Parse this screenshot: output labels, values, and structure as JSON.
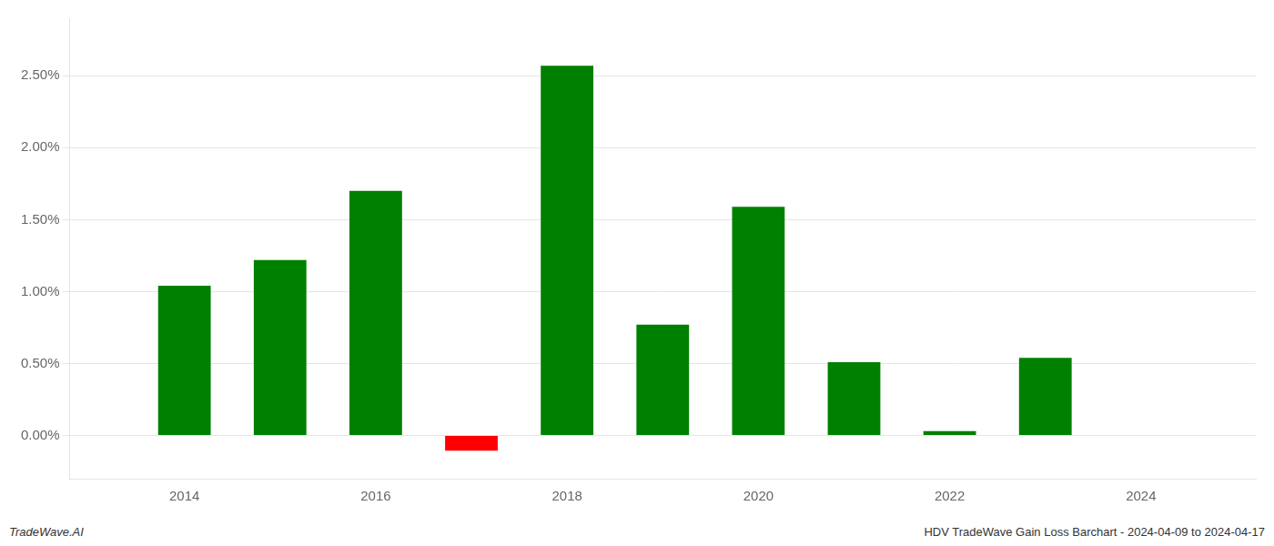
{
  "chart_data": {
    "type": "bar",
    "x": [
      2014,
      2015,
      2016,
      2017,
      2018,
      2019,
      2020,
      2021,
      2022,
      2023
    ],
    "values": [
      0.0104,
      0.0122,
      0.017,
      -0.00105,
      0.0257,
      0.0077,
      0.0159,
      0.0051,
      0.0003,
      0.0054
    ],
    "colors": [
      "#008000",
      "#008000",
      "#008000",
      "#ff0000",
      "#008000",
      "#008000",
      "#008000",
      "#008000",
      "#008000",
      "#008000"
    ],
    "xlim": [
      2012.8,
      2025.2
    ],
    "xticks": [
      2014,
      2016,
      2018,
      2020,
      2022,
      2024
    ],
    "ylim": [
      -0.003,
      0.029
    ],
    "yticks": [
      {
        "value": 0,
        "label": "0.00%"
      },
      {
        "value": 0.005,
        "label": "0.50%"
      },
      {
        "value": 0.01,
        "label": "1.00%"
      },
      {
        "value": 0.015,
        "label": "1.50%"
      },
      {
        "value": 0.02,
        "label": "2.00%"
      },
      {
        "value": 0.025,
        "label": "2.50%"
      }
    ],
    "grid": "y",
    "annotations": [
      "TradeWave.AI",
      "HDV TradeWave Gain Loss Barchart - 2024-04-09 to 2024-04-17"
    ]
  }
}
